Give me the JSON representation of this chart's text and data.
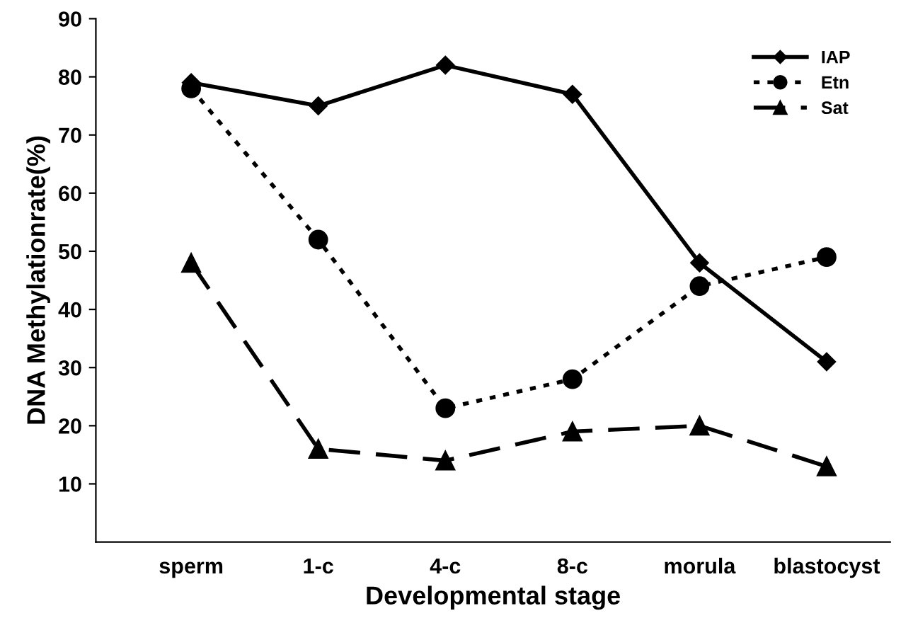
{
  "chart_data": {
    "type": "line",
    "xlabel": "Developmental stage",
    "ylabel": "DNA Methylationrate(%)",
    "categories": [
      "sperm",
      "1-c",
      "4-c",
      "8-c",
      "morula",
      "blastocyst"
    ],
    "series": [
      {
        "name": "IAP",
        "color": "#000000",
        "marker": "diamond",
        "line_style": "solid",
        "values": [
          79,
          75,
          82,
          77,
          48,
          31
        ]
      },
      {
        "name": "Etn",
        "color": "#000000",
        "marker": "circle",
        "line_style": "dotted",
        "values": [
          78,
          52,
          23,
          28,
          44,
          49
        ]
      },
      {
        "name": "Sat",
        "color": "#000000",
        "marker": "triangle",
        "line_style": "dashed",
        "values": [
          48,
          16,
          14,
          19,
          20,
          13
        ]
      }
    ],
    "ylim": [
      0,
      90
    ],
    "yticks": [
      10,
      20,
      30,
      40,
      50,
      60,
      70,
      80,
      90
    ],
    "grid": false,
    "legend": "top right"
  }
}
